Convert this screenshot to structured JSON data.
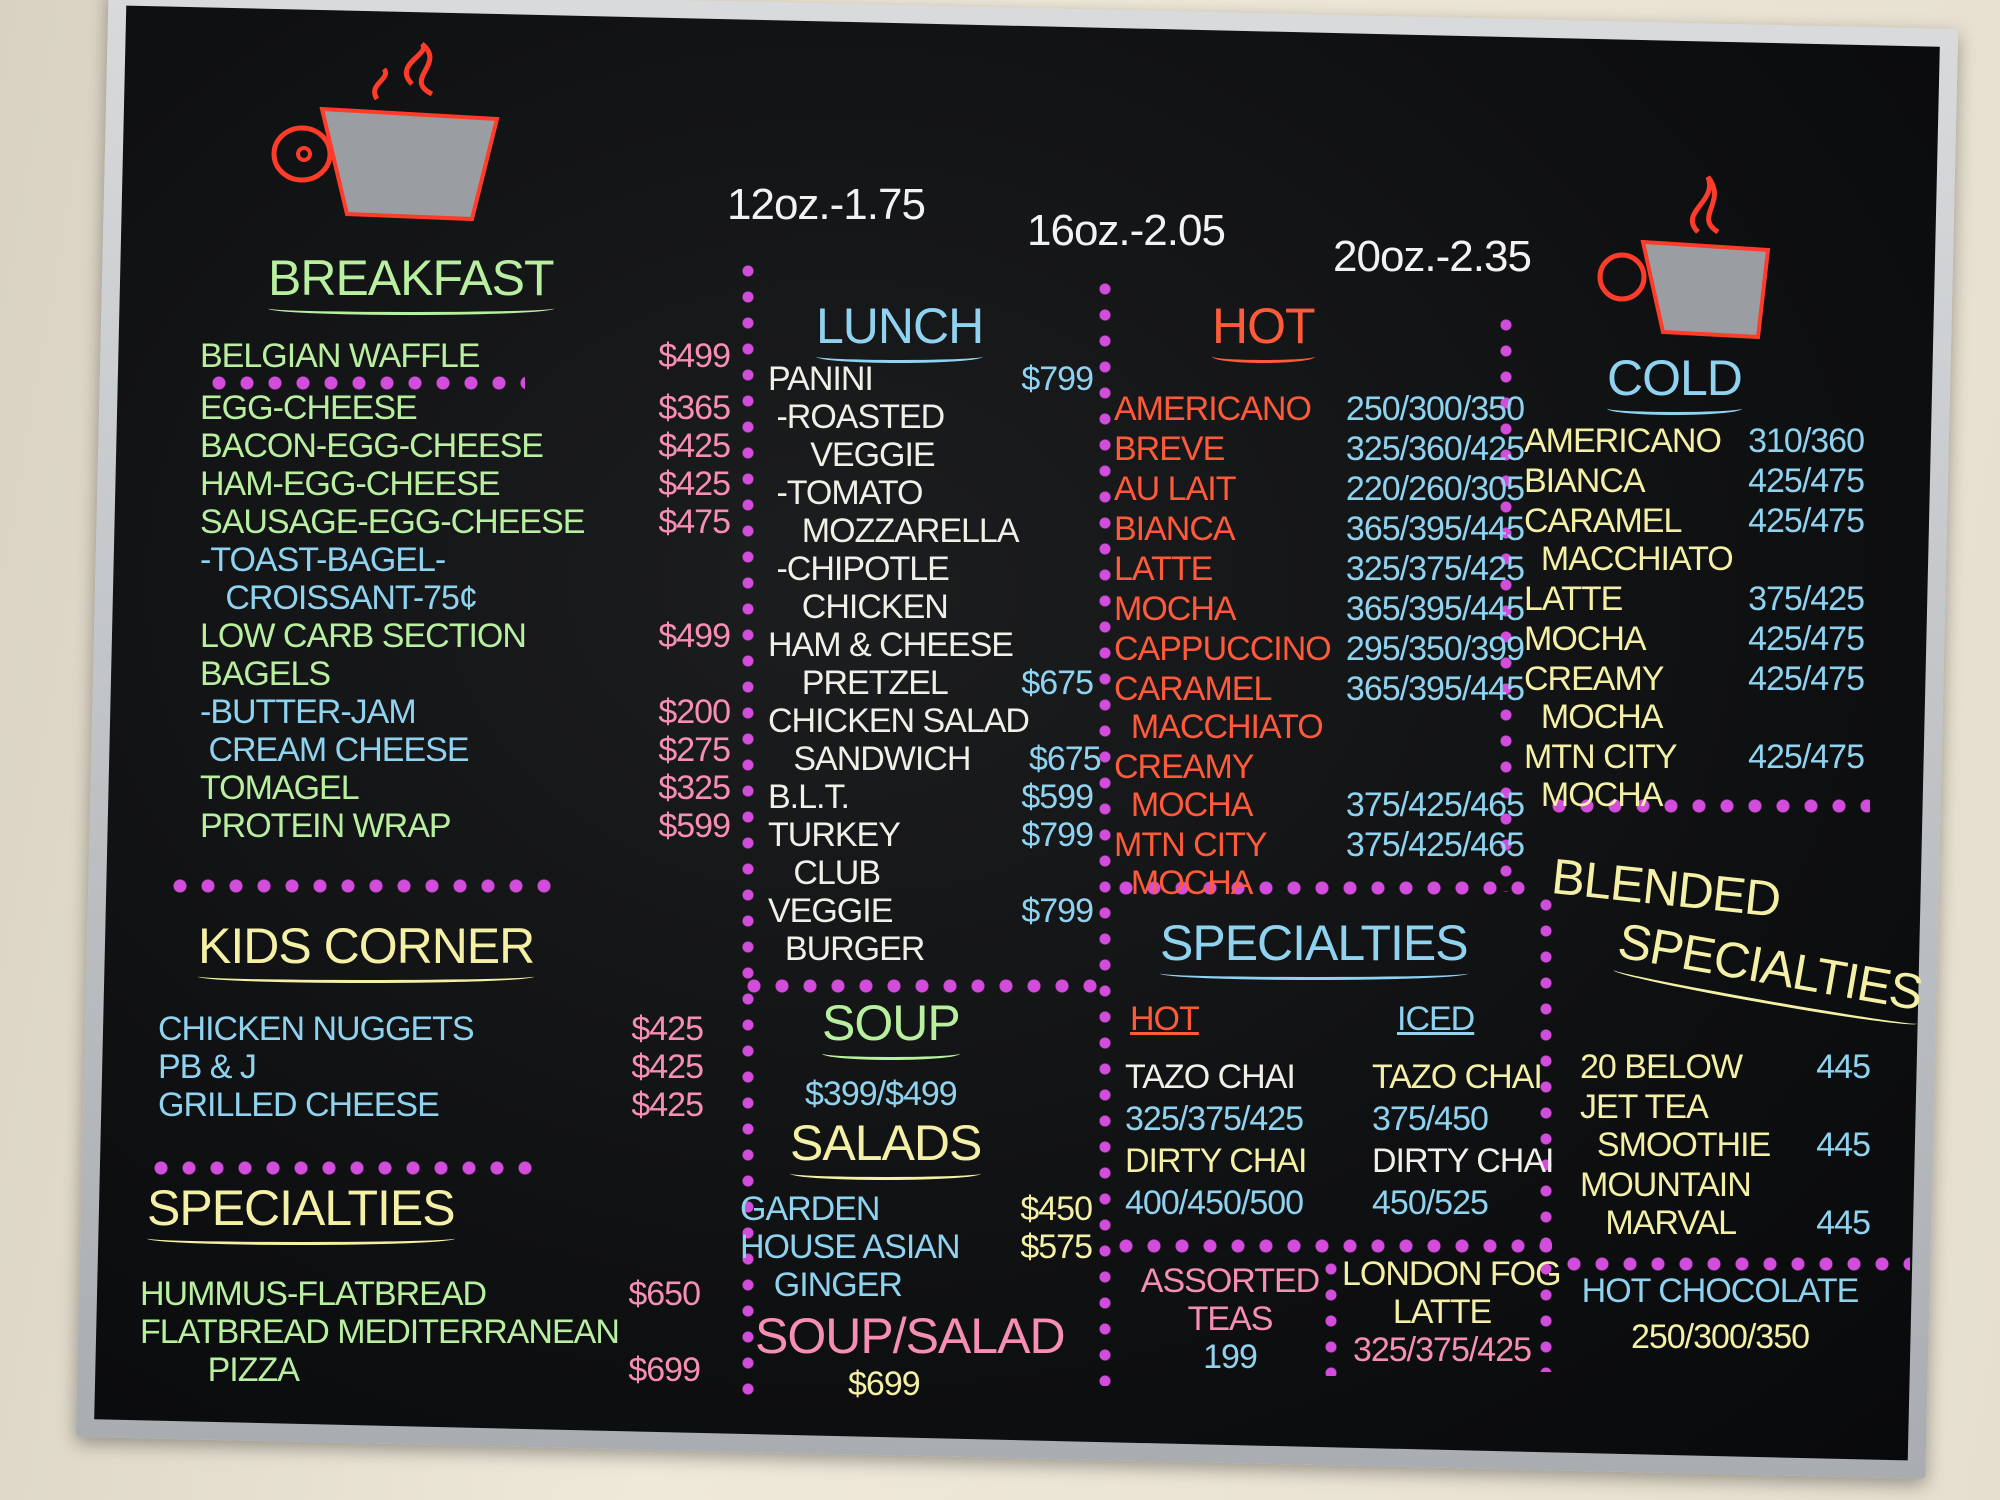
{
  "colors": {
    "green": "#b8f0a0",
    "pink": "#f78fb3",
    "blue": "#8fd3f0",
    "red": "#ff5a3a",
    "yellow": "#f4f0a6",
    "white": "#f0f0e8",
    "dots": "#d24ddc",
    "board": "#0d0e10"
  },
  "icons": {
    "left_cup": "coffee-cup-icon",
    "right_cup": "coffee-cup-icon"
  },
  "sizes": [
    "12oz.-1.75",
    "16oz.-2.05",
    "20oz.-2.35"
  ],
  "breakfast": {
    "title": "BREAKFAST",
    "items": [
      {
        "name": "BELGIAN WAFFLE",
        "price": "$499",
        "c": "green",
        "pc": "pink"
      },
      {
        "name": "EGG-CHEESE",
        "price": "$365",
        "c": "green",
        "pc": "pink"
      },
      {
        "name": "BACON-EGG-CHEESE",
        "price": "$425",
        "c": "green",
        "pc": "pink"
      },
      {
        "name": "HAM-EGG-CHEESE",
        "price": "$425",
        "c": "green",
        "pc": "pink"
      },
      {
        "name": "SAUSAGE-EGG-CHEESE",
        "price": "$475",
        "c": "green",
        "pc": "pink"
      },
      {
        "name": "-TOAST-BAGEL-\n   CROISSANT-75¢",
        "price": "",
        "c": "blue",
        "pc": "pink"
      },
      {
        "name": "LOW CARB SECTION",
        "price": "$499",
        "c": "green",
        "pc": "pink"
      },
      {
        "name": "BAGELS",
        "price": "",
        "c": "green",
        "pc": "pink"
      },
      {
        "name": "-BUTTER-JAM",
        "price": "$200",
        "c": "blue",
        "pc": "pink"
      },
      {
        "name": " CREAM CHEESE",
        "price": "$275",
        "c": "blue",
        "pc": "pink"
      },
      {
        "name": "TOMAGEL",
        "price": "$325",
        "c": "green",
        "pc": "pink"
      },
      {
        "name": "PROTEIN WRAP",
        "price": "$599",
        "c": "green",
        "pc": "pink"
      }
    ]
  },
  "kids": {
    "title": "KIDS CORNER",
    "items": [
      {
        "name": "CHICKEN NUGGETS",
        "price": "$425",
        "c": "blue",
        "pc": "pink"
      },
      {
        "name": "PB & J",
        "price": "$425",
        "c": "blue",
        "pc": "pink"
      },
      {
        "name": "GRILLED CHEESE",
        "price": "$425",
        "c": "blue",
        "pc": "pink"
      }
    ]
  },
  "specialties_left": {
    "title": "SPECIALTIES",
    "items": [
      {
        "name": "HUMMUS-FLATBREAD",
        "price": "$650",
        "c": "green",
        "pc": "pink"
      },
      {
        "name": "FLATBREAD MEDITERRANEAN\n        PIZZA",
        "price": "\n$699",
        "c": "green",
        "pc": "pink"
      }
    ]
  },
  "lunch": {
    "title": "LUNCH",
    "items": [
      {
        "name": "PANINI",
        "price": "$799",
        "c": "white",
        "pc": "blue"
      },
      {
        "name": " -ROASTED\n     VEGGIE",
        "price": "",
        "c": "white",
        "pc": "blue"
      },
      {
        "name": " -TOMATO\n    MOZZARELLA",
        "price": "",
        "c": "white",
        "pc": "blue"
      },
      {
        "name": " -CHIPOTLE\n    CHICKEN",
        "price": "",
        "c": "white",
        "pc": "blue"
      },
      {
        "name": "HAM & CHEESE\n    PRETZEL",
        "price": "\n$675",
        "c": "white",
        "pc": "blue"
      },
      {
        "name": "CHICKEN SALAD\n   SANDWICH",
        "price": "\n$675",
        "c": "white",
        "pc": "blue"
      },
      {
        "name": "B.L.T.",
        "price": "$599",
        "c": "white",
        "pc": "blue"
      },
      {
        "name": "TURKEY\n   CLUB",
        "price": "$799",
        "c": "white",
        "pc": "blue"
      },
      {
        "name": "VEGGIE\n  BURGER",
        "price": "$799",
        "c": "white",
        "pc": "blue"
      }
    ]
  },
  "soup": {
    "title": "SOUP",
    "price": "$399/$499"
  },
  "salads": {
    "title": "SALADS",
    "items": [
      {
        "name": "GARDEN",
        "price": "$450",
        "c": "blue",
        "pc": "yellow"
      },
      {
        "name": "HOUSE ASIAN\n    GINGER",
        "price": "$575",
        "c": "blue",
        "pc": "yellow"
      }
    ],
    "combo_title": "SOUP/SALAD",
    "combo_price": "$699"
  },
  "hot": {
    "title": "HOT",
    "items": [
      {
        "name": "AMERICANO",
        "price": "250/300/350",
        "c": "red",
        "pc": "blue"
      },
      {
        "name": "BREVE",
        "price": "325/360/425",
        "c": "red",
        "pc": "blue"
      },
      {
        "name": "AU LAIT",
        "price": "220/260/305",
        "c": "red",
        "pc": "blue"
      },
      {
        "name": "BIANCA",
        "price": "365/395/445",
        "c": "red",
        "pc": "blue"
      },
      {
        "name": "LATTE",
        "price": "325/375/425",
        "c": "red",
        "pc": "blue"
      },
      {
        "name": "MOCHA",
        "price": "365/395/445",
        "c": "red",
        "pc": "blue"
      },
      {
        "name": "CAPPUCCINO",
        "price": "295/350/399",
        "c": "red",
        "pc": "blue"
      },
      {
        "name": "CARAMEL\n  MACCHIATO",
        "price": "365/395/445",
        "c": "red",
        "pc": "blue"
      },
      {
        "name": "CREAMY\n  MOCHA",
        "price": "\n375/425/465",
        "c": "red",
        "pc": "blue"
      },
      {
        "name": "MTN CITY\n  MOCHA",
        "price": "375/425/465",
        "c": "red",
        "pc": "blue"
      }
    ]
  },
  "cold": {
    "title": "COLD",
    "items": [
      {
        "name": "AMERICANO",
        "price": "310/360",
        "c": "yellow",
        "pc": "blue"
      },
      {
        "name": "BIANCA",
        "price": "425/475",
        "c": "yellow",
        "pc": "blue"
      },
      {
        "name": "CARAMEL\n  MACCHIATO",
        "price": "425/475",
        "c": "yellow",
        "pc": "blue"
      },
      {
        "name": "LATTE",
        "price": "375/425",
        "c": "yellow",
        "pc": "blue"
      },
      {
        "name": "MOCHA",
        "price": "425/475",
        "c": "yellow",
        "pc": "blue"
      },
      {
        "name": "CREAMY\n  MOCHA",
        "price": "425/475",
        "c": "yellow",
        "pc": "blue"
      },
      {
        "name": "MTN CITY\n  MOCHA",
        "price": "425/475",
        "c": "yellow",
        "pc": "blue"
      }
    ]
  },
  "specialties_mid": {
    "title": "SPECIALTIES",
    "hot_label": "HOT",
    "iced_label": "ICED",
    "hot": [
      {
        "name": "TAZO CHAI",
        "c": "white"
      },
      {
        "name": "325/375/425",
        "c": "blue"
      },
      {
        "name": "DIRTY CHAI",
        "c": "yellow"
      },
      {
        "name": "400/450/500",
        "c": "blue"
      }
    ],
    "iced": [
      {
        "name": "TAZO CHAI",
        "c": "yellow"
      },
      {
        "name": "375/450",
        "c": "blue"
      },
      {
        "name": "DIRTY CHAI",
        "c": "white"
      },
      {
        "name": "450/525",
        "c": "blue"
      }
    ]
  },
  "blended": {
    "title_1": "BLENDED",
    "title_2": "SPECIALTIES",
    "items": [
      {
        "name": "20 BELOW",
        "price": "445",
        "c": "yellow",
        "pc": "blue"
      },
      {
        "name": "JET TEA\n  SMOOTHIE",
        "price": "\n445",
        "c": "yellow",
        "pc": "blue"
      },
      {
        "name": "MOUNTAIN\n   MARVAL",
        "price": "\n445",
        "c": "yellow",
        "pc": "blue"
      }
    ]
  },
  "teas": {
    "label_1": "ASSORTED",
    "label_2": "TEAS",
    "price": "199"
  },
  "london_fog": {
    "label_1": "LONDON FOG",
    "label_2": "LATTE",
    "price": "325/375/425"
  },
  "hot_chocolate": {
    "label": "HOT CHOCOLATE",
    "price": "250/300/350"
  }
}
